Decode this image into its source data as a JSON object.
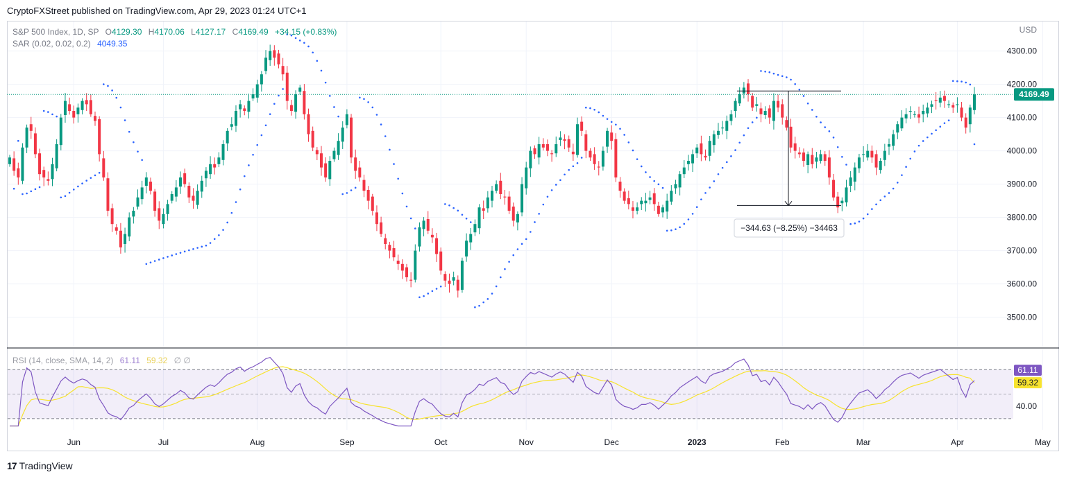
{
  "header": {
    "published_line": "CryptoFXStreet published on TradingView.com, Apr 29, 2023 01:24 UTC+1"
  },
  "legend": {
    "symbol": "S&P 500 Index, 1D, SP",
    "o_label": "O",
    "o_value": "4129.30",
    "h_label": "H",
    "h_value": "4170.06",
    "l_label": "L",
    "l_value": "4127.17",
    "c_label": "C",
    "c_value": "4169.49",
    "change": "+34.15 (+0.83%)",
    "sar_label": "SAR (0.02, 0.02, 0.2)",
    "sar_value": "4049.35",
    "currency": "USD"
  },
  "rsi_legend": {
    "label": "RSI (14, close, SMA, 14, 2)",
    "rsi_value": "61.11",
    "sma_value": "59.32",
    "extra": "∅ ∅"
  },
  "measure": {
    "text": "−344.63 (−8.25%) −34463"
  },
  "brand": {
    "name": "TradingView"
  },
  "colors": {
    "up": "#089981",
    "down": "#f23645",
    "sar": "#2962ff",
    "rsi": "#7e57c2",
    "rsi_sma": "#f7e32f",
    "grid": "#f0f3fa",
    "price_tag": "#089981",
    "rsi_tag": "#7e57c2",
    "sma_tag": "#f7e32f"
  },
  "chart_data": {
    "type": "candlestick",
    "title": "S&P 500 Index, 1D, SP",
    "y_ticks": [
      3500,
      3600,
      3700,
      3800,
      3900,
      4000,
      4100,
      4200,
      4300
    ],
    "y_tick_labels": [
      "3500.00",
      "3600.00",
      "3700.00",
      "3800.00",
      "3900.00",
      "4000.00",
      "4100.00",
      "4200.00",
      "4300.00"
    ],
    "ylim": [
      3420,
      4370
    ],
    "last_price": 4169.49,
    "last_price_label": "4169.49",
    "x_labels": [
      "Jun",
      "Jul",
      "Aug",
      "Sep",
      "Oct",
      "Nov",
      "Dec",
      "2023",
      "Feb",
      "Mar",
      "Apr",
      "May"
    ],
    "x_label_bar_index": [
      15,
      36,
      58,
      79,
      101,
      121,
      141,
      161,
      181,
      200,
      222,
      242
    ],
    "closes": [
      3980,
      3940,
      3920,
      4010,
      4070,
      4060,
      3990,
      3930,
      3920,
      3910,
      3960,
      4020,
      4100,
      4150,
      4120,
      4100,
      4130,
      4150,
      4140,
      4110,
      4090,
      3990,
      3920,
      3820,
      3780,
      3760,
      3710,
      3750,
      3800,
      3820,
      3860,
      3890,
      3920,
      3880,
      3820,
      3790,
      3810,
      3840,
      3870,
      3890,
      3920,
      3900,
      3860,
      3850,
      3880,
      3910,
      3940,
      3960,
      3950,
      3980,
      4020,
      4060,
      4080,
      4120,
      4140,
      4120,
      4150,
      4170,
      4200,
      4230,
      4280,
      4300,
      4280,
      4260,
      4230,
      4150,
      4120,
      4170,
      4190,
      4110,
      4050,
      4010,
      3990,
      3950,
      3920,
      3970,
      4000,
      4030,
      4070,
      4110,
      3980,
      3940,
      3920,
      3880,
      3850,
      3820,
      3780,
      3750,
      3720,
      3700,
      3680,
      3660,
      3640,
      3620,
      3610,
      3700,
      3770,
      3790,
      3760,
      3740,
      3690,
      3640,
      3610,
      3600,
      3620,
      3580,
      3670,
      3730,
      3750,
      3780,
      3830,
      3820,
      3860,
      3880,
      3900,
      3870,
      3860,
      3820,
      3790,
      3810,
      3900,
      3950,
      4000,
      3990,
      4020,
      4010,
      4000,
      3990,
      4020,
      4040,
      4030,
      4010,
      3990,
      4080,
      4060,
      4000,
      3980,
      3960,
      3950,
      4000,
      4060,
      4030,
      3920,
      3880,
      3850,
      3840,
      3820,
      3830,
      3850,
      3850,
      3860,
      3840,
      3810,
      3830,
      3850,
      3880,
      3900,
      3930,
      3950,
      3970,
      3990,
      4010,
      3990,
      3980,
      4030,
      4050,
      4060,
      4070,
      4090,
      4110,
      4150,
      4170,
      4190,
      4170,
      4130,
      4140,
      4110,
      4120,
      4100,
      4150,
      4130,
      4100,
      4070,
      4010,
      4000,
      3990,
      3970,
      3990,
      3960,
      3980,
      3990,
      3970,
      3920,
      3860,
      3830,
      3850,
      3890,
      3920,
      3950,
      3980,
      3990,
      4000,
      3980,
      3950,
      3970,
      4000,
      4020,
      4050,
      4080,
      4100,
      4110,
      4120,
      4110,
      4100,
      4120,
      4130,
      4140,
      4150,
      4160,
      4150,
      4140,
      4130,
      4140,
      4100,
      4070,
      4130,
      4169.49
    ],
    "rsi": {
      "y_ticks": [
        40
      ],
      "y_tick_labels": [
        "40.00"
      ],
      "ylim": [
        22,
        82
      ],
      "upper_band": 70,
      "lower_band": 30,
      "last_rsi": 61.11,
      "last_sma": 59.32
    },
    "measure_range": {
      "change": -344.63,
      "percent": -8.25,
      "from": 4180,
      "to": 3836
    }
  }
}
